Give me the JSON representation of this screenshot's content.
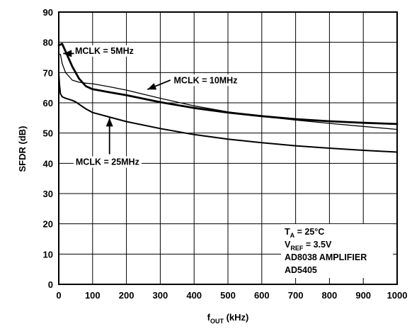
{
  "chart_data": {
    "type": "line",
    "title": "",
    "xlabel": {
      "main": "f",
      "sub": "OUT",
      "suffix": " (kHz)"
    },
    "ylabel": "SFDR (dB)",
    "xlim": [
      0,
      1000
    ],
    "ylim": [
      0,
      90
    ],
    "xticks": [
      0,
      100,
      200,
      300,
      400,
      500,
      600,
      700,
      800,
      900,
      1000
    ],
    "yticks": [
      0,
      10,
      20,
      30,
      40,
      50,
      60,
      70,
      80,
      90
    ],
    "grid": true,
    "series": [
      {
        "name": "MCLK = 5MHz",
        "stroke": "thick",
        "x": [
          0,
          10,
          20,
          40,
          60,
          80,
          100,
          150,
          200,
          300,
          400,
          500,
          600,
          700,
          800,
          900,
          1000
        ],
        "y": [
          79,
          79.5,
          77,
          72,
          68,
          65.5,
          64.5,
          63.5,
          62.5,
          60.2,
          58.3,
          56.8,
          55.6,
          54.6,
          53.9,
          53.4,
          53
        ]
      },
      {
        "name": "MCLK = 10MHz",
        "stroke": "thin",
        "x": [
          0,
          5,
          10,
          20,
          40,
          60,
          80,
          100,
          150,
          200,
          300,
          400,
          500,
          600,
          700,
          800,
          900,
          1000
        ],
        "y": [
          76,
          76,
          73,
          70,
          67.5,
          66.8,
          66.5,
          66.3,
          65.3,
          64.2,
          61.5,
          59,
          57,
          55.5,
          54.3,
          53.2,
          52.2,
          51.2
        ]
      },
      {
        "name": "MCLK = 25MHz",
        "stroke": "medium",
        "x": [
          0,
          2,
          5,
          10,
          20,
          40,
          50,
          60,
          80,
          100,
          150,
          200,
          300,
          400,
          500,
          600,
          700,
          800,
          900,
          1000
        ],
        "y": [
          70,
          66,
          63,
          62,
          61.5,
          60.8,
          60.3,
          59.5,
          58,
          56.8,
          55.3,
          53.8,
          51.5,
          49.5,
          48,
          46.8,
          45.8,
          45,
          44.3,
          43.7
        ]
      }
    ],
    "annotations": [
      {
        "label": "MCLK = 5MHz",
        "text_at": [
          48,
          76.2
        ],
        "arrow_from": [
          45,
          76.3
        ],
        "arrow_to": [
          13,
          76.3
        ]
      },
      {
        "label": "MCLK = 10MHz",
        "text_at": [
          340,
          66.5
        ],
        "arrow_from": [
          330,
          67.5
        ],
        "arrow_to": [
          262,
          64.4
        ]
      },
      {
        "label": "MCLK = 25MHz",
        "text_at": [
          50,
          39.5
        ],
        "arrow_from": [
          150,
          43
        ],
        "arrow_to": [
          150,
          55
        ]
      }
    ],
    "conditions": {
      "ta": {
        "main": "T",
        "sub": "A",
        "rest": " = 25°C"
      },
      "vref": {
        "main": "V",
        "sub": "REF",
        "rest": " = 3.5V"
      },
      "line3": "AD8038 AMPLIFIER",
      "line4": "AD5405"
    }
  }
}
